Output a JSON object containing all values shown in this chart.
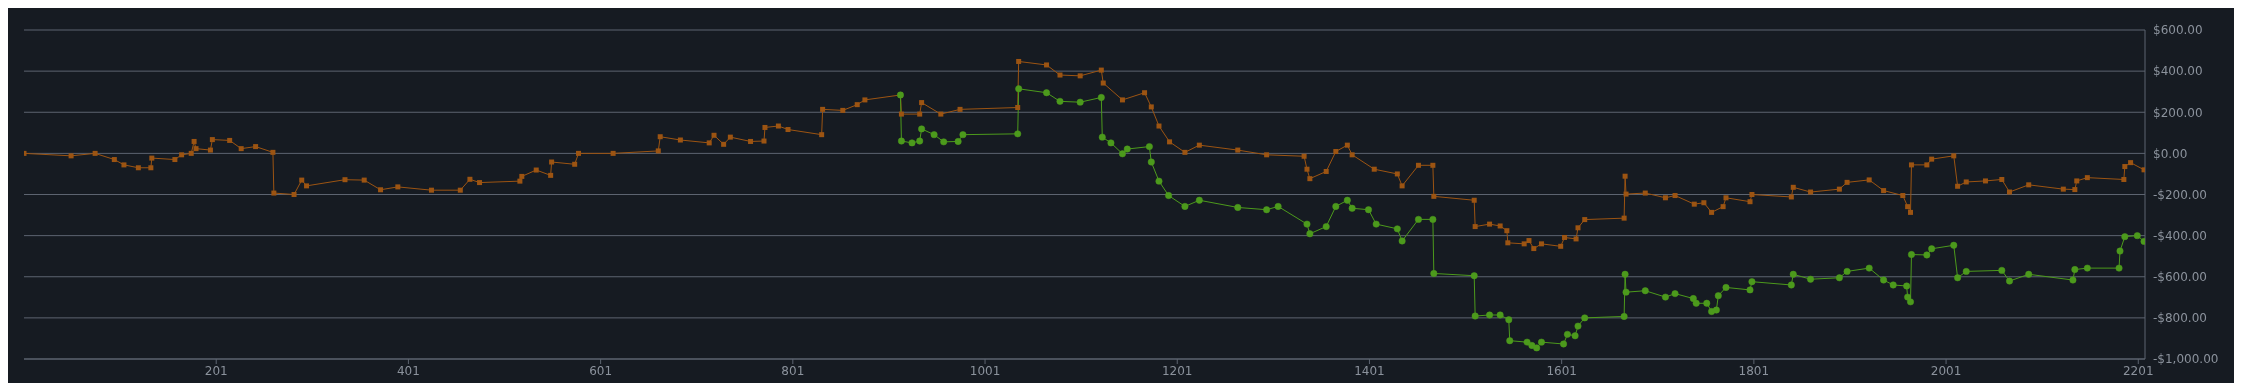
{
  "chart_data": {
    "type": "line",
    "xlim": [
      1,
      2208
    ],
    "xticks": [
      201,
      401,
      601,
      801,
      1001,
      1201,
      1401,
      1601,
      1801,
      2001,
      2201
    ],
    "ylim": [
      -1000,
      600
    ],
    "yticks": [
      {
        "value": -1000,
        "label": "-$1,000.00"
      },
      {
        "value": -800,
        "label": "-$800.00"
      },
      {
        "value": -600,
        "label": "-$600.00"
      },
      {
        "value": -400,
        "label": "-$400.00"
      },
      {
        "value": -200,
        "label": "-$200.00"
      },
      {
        "value": 0,
        "label": "$0.00"
      },
      {
        "value": 200,
        "label": "$200.00"
      },
      {
        "value": 400,
        "label": "$400.00"
      },
      {
        "value": 600,
        "label": "$600.00"
      }
    ],
    "grid": "y",
    "series": [
      {
        "color": "#9c5412",
        "marker": "square",
        "x": [
          1,
          50,
          75,
          95,
          105,
          120,
          133,
          134,
          158,
          165,
          175,
          178,
          180,
          195,
          197,
          215,
          227,
          242,
          260,
          261,
          282,
          290,
          295,
          335,
          355,
          372,
          390,
          425,
          455,
          465,
          475,
          517,
          519,
          534,
          549,
          550,
          574,
          578,
          614,
          661,
          663,
          684,
          714,
          719,
          729,
          736,
          757,
          771,
          772,
          786,
          796,
          831,
          832,
          853,
          868,
          876,
          913,
          914,
          933,
          935,
          955,
          975,
          1035,
          1036,
          1065,
          1079,
          1100,
          1122,
          1124,
          1144,
          1167,
          1174,
          1182,
          1193,
          1209,
          1224,
          1264,
          1294,
          1333,
          1336,
          1339,
          1356,
          1366,
          1378,
          1383,
          1406,
          1430,
          1435,
          1452,
          1467,
          1468,
          1510,
          1511,
          1526,
          1537,
          1544,
          1545,
          1562,
          1567,
          1572,
          1580,
          1600,
          1604,
          1616,
          1618,
          1625,
          1666,
          1667,
          1668,
          1688,
          1709,
          1719,
          1739,
          1749,
          1757,
          1769,
          1772,
          1797,
          1799,
          1840,
          1842,
          1860,
          1890,
          1898,
          1921,
          1936,
          1956,
          1961,
          1964,
          1965,
          1981,
          1986,
          2009,
          2013,
          2022,
          2042,
          2059,
          2067,
          2087,
          2123,
          2135,
          2137,
          2148,
          2186,
          2187,
          2193,
          2207
        ],
        "values": [
          0,
          -12,
          0,
          -30,
          -56,
          -70,
          -70,
          -23,
          -30,
          -7,
          0,
          58,
          23,
          16,
          67,
          63,
          23,
          33,
          5,
          -193,
          -200,
          -130,
          -158,
          -128,
          -130,
          -177,
          -163,
          -179,
          -179,
          -126,
          -142,
          -135,
          -112,
          -81,
          -107,
          -42,
          -53,
          0,
          0,
          12,
          81,
          65,
          51,
          88,
          44,
          79,
          58,
          60,
          126,
          133,
          116,
          91,
          214,
          209,
          237,
          260,
          284,
          191,
          191,
          247,
          191,
          214,
          223,
          447,
          430,
          381,
          377,
          405,
          342,
          260,
          295,
          226,
          133,
          56,
          5,
          40,
          16,
          -7,
          -14,
          -77,
          -123,
          -88,
          9,
          40,
          -7,
          -77,
          -100,
          -158,
          -58,
          -58,
          -209,
          -228,
          -356,
          -344,
          -353,
          -376,
          -435,
          -440,
          -424,
          -463,
          -440,
          -452,
          -409,
          -416,
          -362,
          -322,
          -315,
          -111,
          -198,
          -193,
          -216,
          -205,
          -247,
          -240,
          -287,
          -259,
          -216,
          -235,
          -200,
          -212,
          -165,
          -188,
          -174,
          -141,
          -129,
          -181,
          -205,
          -259,
          -287,
          -56,
          -56,
          -28,
          -12,
          -160,
          -139,
          -134,
          -127,
          -188,
          -153,
          -174,
          -176,
          -134,
          -118,
          -127,
          -64,
          -45,
          -80
        ]
      },
      {
        "color": "#4c9a1c",
        "marker": "circle",
        "x": [
          913,
          914,
          925,
          933,
          935,
          948,
          958,
          973,
          978,
          1035,
          1036,
          1065,
          1079,
          1100,
          1122,
          1123,
          1132,
          1144,
          1149,
          1172,
          1174,
          1182,
          1192,
          1209,
          1224,
          1264,
          1294,
          1306,
          1336,
          1339,
          1356,
          1366,
          1378,
          1383,
          1400,
          1408,
          1430,
          1435,
          1452,
          1467,
          1468,
          1510,
          1511,
          1526,
          1537,
          1546,
          1547,
          1565,
          1570,
          1575,
          1580,
          1603,
          1607,
          1615,
          1618,
          1625,
          1666,
          1667,
          1668,
          1688,
          1709,
          1719,
          1738,
          1741,
          1752,
          1757,
          1762,
          1764,
          1772,
          1797,
          1799,
          1840,
          1842,
          1860,
          1890,
          1898,
          1921,
          1936,
          1946,
          1960,
          1961,
          1964,
          1965,
          1981,
          1986,
          2009,
          2013,
          2022,
          2059,
          2067,
          2087,
          2133,
          2135,
          2148,
          2181,
          2182,
          2187,
          2200,
          2207
        ],
        "values": [
          284,
          60,
          51,
          60,
          119,
          91,
          56,
          58,
          91,
          95,
          314,
          295,
          253,
          249,
          272,
          79,
          51,
          -2,
          21,
          33,
          -42,
          -135,
          -205,
          -258,
          -228,
          -263,
          -274,
          -258,
          -344,
          -391,
          -356,
          -258,
          -228,
          -267,
          -274,
          -344,
          -367,
          -426,
          -321,
          -321,
          -584,
          -595,
          -791,
          -786,
          -786,
          -809,
          -911,
          -918,
          -934,
          -946,
          -918,
          -927,
          -880,
          -887,
          -840,
          -800,
          -793,
          -588,
          -675,
          -668,
          -699,
          -682,
          -706,
          -729,
          -729,
          -769,
          -762,
          -692,
          -652,
          -664,
          -624,
          -640,
          -588,
          -612,
          -605,
          -574,
          -558,
          -616,
          -640,
          -645,
          -699,
          -722,
          -492,
          -494,
          -464,
          -447,
          -605,
          -574,
          -569,
          -621,
          -588,
          -616,
          -565,
          -558,
          -558,
          -475,
          -405,
          -400,
          -428
        ]
      }
    ]
  }
}
